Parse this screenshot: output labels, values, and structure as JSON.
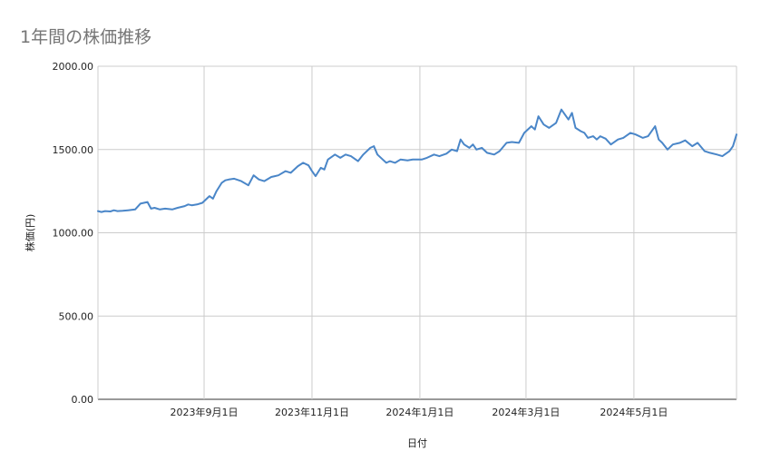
{
  "chart_data": {
    "type": "line",
    "title": "1年間の株価推移",
    "xlabel": "日付",
    "ylabel": "株価(円)",
    "ylim": [
      0,
      2000
    ],
    "yticks": [
      "0.00",
      "500.00",
      "1000.00",
      "1500.00",
      "2000.00"
    ],
    "xlim": [
      "2023-07-03",
      "2024-06-28"
    ],
    "xticks": [
      {
        "date": "2023-09-01",
        "label": "2023年9月1日"
      },
      {
        "date": "2023-11-01",
        "label": "2023年11月1日"
      },
      {
        "date": "2024-01-01",
        "label": "2024年1月1日"
      },
      {
        "date": "2024-03-01",
        "label": "2024年3月1日"
      },
      {
        "date": "2024-05-01",
        "label": "2024年5月1日"
      }
    ],
    "grid": true,
    "line_color": "#4a86c8",
    "series": [
      {
        "x": [
          "2023-07-03",
          "2023-07-05",
          "2023-07-07",
          "2023-07-10",
          "2023-07-12",
          "2023-07-14",
          "2023-07-17",
          "2023-07-20",
          "2023-07-24",
          "2023-07-27",
          "2023-07-31",
          "2023-08-02",
          "2023-08-04",
          "2023-08-07",
          "2023-08-10",
          "2023-08-14",
          "2023-08-17",
          "2023-08-21",
          "2023-08-23",
          "2023-08-25",
          "2023-08-28",
          "2023-08-31",
          "2023-09-04",
          "2023-09-06",
          "2023-09-08",
          "2023-09-11",
          "2023-09-13",
          "2023-09-15",
          "2023-09-18",
          "2023-09-22",
          "2023-09-26",
          "2023-09-29",
          "2023-10-02",
          "2023-10-05",
          "2023-10-09",
          "2023-10-11",
          "2023-10-13",
          "2023-10-17",
          "2023-10-20",
          "2023-10-24",
          "2023-10-27",
          "2023-10-30",
          "2023-11-01",
          "2023-11-03",
          "2023-11-06",
          "2023-11-08",
          "2023-11-10",
          "2023-11-14",
          "2023-11-17",
          "2023-11-20",
          "2023-11-23",
          "2023-11-27",
          "2023-11-30",
          "2023-12-04",
          "2023-12-06",
          "2023-12-08",
          "2023-12-11",
          "2023-12-13",
          "2023-12-15",
          "2023-12-18",
          "2023-12-21",
          "2023-12-25",
          "2023-12-28",
          "2024-01-02",
          "2024-01-05",
          "2024-01-09",
          "2024-01-12",
          "2024-01-16",
          "2024-01-19",
          "2024-01-22",
          "2024-01-24",
          "2024-01-26",
          "2024-01-29",
          "2024-01-31",
          "2024-02-02",
          "2024-02-05",
          "2024-02-08",
          "2024-02-12",
          "2024-02-15",
          "2024-02-19",
          "2024-02-22",
          "2024-02-26",
          "2024-02-29",
          "2024-03-04",
          "2024-03-06",
          "2024-03-08",
          "2024-03-11",
          "2024-03-14",
          "2024-03-18",
          "2024-03-21",
          "2024-03-25",
          "2024-03-27",
          "2024-03-29",
          "2024-04-01",
          "2024-04-03",
          "2024-04-05",
          "2024-04-08",
          "2024-04-10",
          "2024-04-12",
          "2024-04-15",
          "2024-04-18",
          "2024-04-22",
          "2024-04-25",
          "2024-04-29",
          "2024-05-02",
          "2024-05-06",
          "2024-05-09",
          "2024-05-13",
          "2024-05-15",
          "2024-05-17",
          "2024-05-20",
          "2024-05-23",
          "2024-05-27",
          "2024-05-30",
          "2024-06-03",
          "2024-06-06",
          "2024-06-10",
          "2024-06-13",
          "2024-06-17",
          "2024-06-20",
          "2024-06-24",
          "2024-06-26",
          "2024-06-28"
        ],
        "values": [
          1130,
          1125,
          1130,
          1128,
          1135,
          1130,
          1132,
          1135,
          1140,
          1175,
          1185,
          1145,
          1150,
          1140,
          1145,
          1140,
          1150,
          1160,
          1170,
          1165,
          1170,
          1180,
          1220,
          1205,
          1250,
          1300,
          1315,
          1320,
          1325,
          1310,
          1285,
          1345,
          1320,
          1310,
          1335,
          1340,
          1345,
          1370,
          1360,
          1400,
          1420,
          1405,
          1370,
          1340,
          1390,
          1380,
          1440,
          1470,
          1450,
          1470,
          1460,
          1430,
          1470,
          1510,
          1520,
          1470,
          1440,
          1420,
          1430,
          1420,
          1440,
          1435,
          1440,
          1440,
          1450,
          1470,
          1460,
          1475,
          1500,
          1490,
          1560,
          1530,
          1510,
          1530,
          1500,
          1510,
          1480,
          1470,
          1490,
          1540,
          1545,
          1540,
          1600,
          1640,
          1620,
          1700,
          1650,
          1630,
          1660,
          1740,
          1680,
          1720,
          1630,
          1610,
          1600,
          1570,
          1580,
          1560,
          1580,
          1565,
          1530,
          1560,
          1570,
          1600,
          1590,
          1570,
          1580,
          1640,
          1560,
          1540,
          1500,
          1530,
          1540,
          1555,
          1520,
          1540,
          1490,
          1480,
          1470,
          1460,
          1490,
          1520,
          1590
        ]
      }
    ]
  }
}
